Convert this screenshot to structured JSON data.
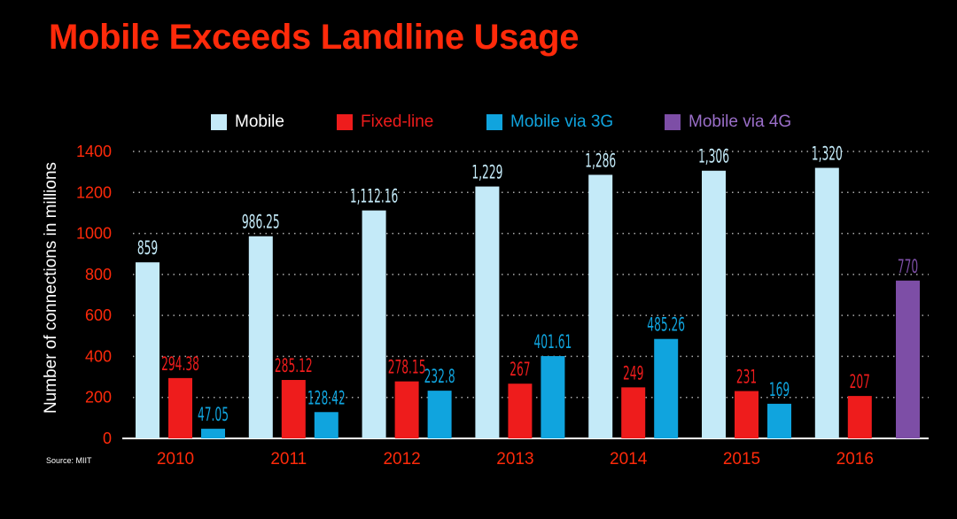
{
  "page": {
    "title": "Mobile Exceeds Landline Usage",
    "source": "Source: MIIT"
  },
  "colors": {
    "background": "#000000",
    "title": "#ff2a0a",
    "mobile": "#c4eaf8",
    "fixed_line": "#ee1c1c",
    "mobile_3g": "#10a4de",
    "mobile_4g": "#7d4ea6",
    "axis_text": "#ff2a0a",
    "grid": "#aaaaaa"
  },
  "chart_data": {
    "type": "bar",
    "title": "Mobile Exceeds Landline Usage",
    "xlabel": "",
    "ylabel": "Number of connections in millions",
    "ylim": [
      0,
      1400
    ],
    "yticks": [
      0,
      200,
      400,
      600,
      800,
      1000,
      1200,
      1400
    ],
    "grid": "horizontal dotted",
    "legend_position": "top",
    "categories": [
      "2010",
      "2011",
      "2012",
      "2013",
      "2014",
      "2015",
      "2016"
    ],
    "series": [
      {
        "name": "Mobile",
        "values": [
          859,
          986.25,
          1112.16,
          1229,
          1286,
          1306,
          1320
        ],
        "labels": [
          "859",
          "986.25",
          "1,112.16",
          "1,229",
          "1,286",
          "1,306",
          "1,320"
        ]
      },
      {
        "name": "Fixed-line",
        "values": [
          294.38,
          285.12,
          278.15,
          267,
          249,
          231,
          207
        ],
        "labels": [
          "294.38",
          "285.12",
          "278.15",
          "267",
          "249",
          "231",
          "207"
        ]
      },
      {
        "name": "Mobile via 3G",
        "values": [
          47.05,
          128.42,
          232.8,
          401.61,
          485.26,
          169,
          null
        ],
        "labels": [
          "47.05",
          "128.42",
          "232.8",
          "401.61",
          "485.26",
          "169",
          ""
        ]
      },
      {
        "name": "Mobile via 4G",
        "values": [
          null,
          null,
          null,
          null,
          null,
          null,
          770
        ],
        "labels": [
          "",
          "",
          "",
          "",
          "",
          "",
          "770"
        ]
      }
    ]
  }
}
